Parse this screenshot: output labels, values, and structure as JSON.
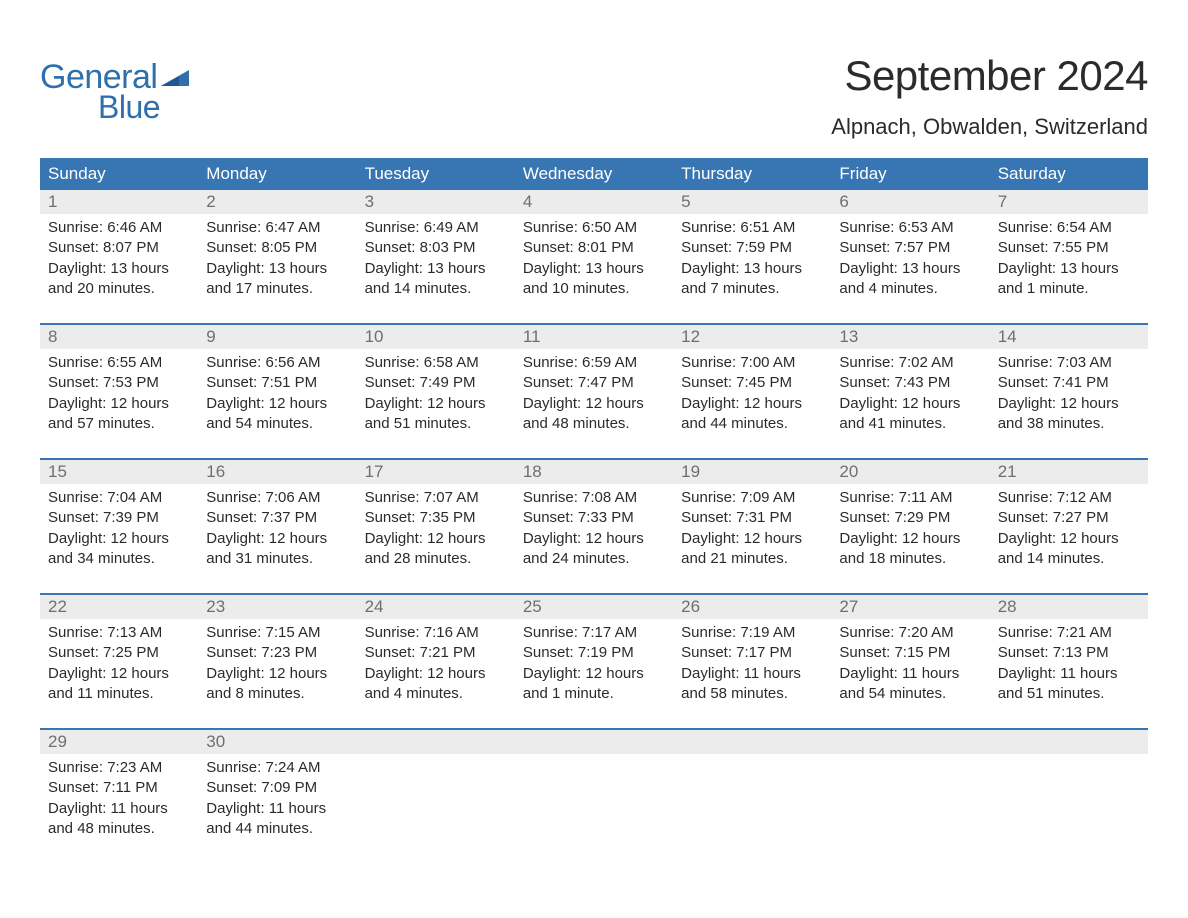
{
  "brand": {
    "word1": "General",
    "word2": "Blue",
    "flag_color": "#2f6fab"
  },
  "title": "September 2024",
  "location": "Alpnach, Obwalden, Switzerland",
  "colors": {
    "header_bg": "#3876b3",
    "header_text": "#ffffff",
    "daynum_bg": "#ececec",
    "daynum_text": "#6f6f6f",
    "body_text": "#2b2b2b",
    "brand_text": "#2f6fab",
    "page_bg": "#ffffff"
  },
  "typography": {
    "title_fontsize": 42,
    "location_fontsize": 22,
    "weekday_fontsize": 17,
    "daynum_fontsize": 17,
    "cell_fontsize": 15,
    "logo_fontsize": 34
  },
  "weekdays": [
    "Sunday",
    "Monday",
    "Tuesday",
    "Wednesday",
    "Thursday",
    "Friday",
    "Saturday"
  ],
  "weeks": [
    [
      {
        "num": "1",
        "sunrise": "Sunrise: 6:46 AM",
        "sunset": "Sunset: 8:07 PM",
        "day1": "Daylight: 13 hours",
        "day2": "and 20 minutes."
      },
      {
        "num": "2",
        "sunrise": "Sunrise: 6:47 AM",
        "sunset": "Sunset: 8:05 PM",
        "day1": "Daylight: 13 hours",
        "day2": "and 17 minutes."
      },
      {
        "num": "3",
        "sunrise": "Sunrise: 6:49 AM",
        "sunset": "Sunset: 8:03 PM",
        "day1": "Daylight: 13 hours",
        "day2": "and 14 minutes."
      },
      {
        "num": "4",
        "sunrise": "Sunrise: 6:50 AM",
        "sunset": "Sunset: 8:01 PM",
        "day1": "Daylight: 13 hours",
        "day2": "and 10 minutes."
      },
      {
        "num": "5",
        "sunrise": "Sunrise: 6:51 AM",
        "sunset": "Sunset: 7:59 PM",
        "day1": "Daylight: 13 hours",
        "day2": "and 7 minutes."
      },
      {
        "num": "6",
        "sunrise": "Sunrise: 6:53 AM",
        "sunset": "Sunset: 7:57 PM",
        "day1": "Daylight: 13 hours",
        "day2": "and 4 minutes."
      },
      {
        "num": "7",
        "sunrise": "Sunrise: 6:54 AM",
        "sunset": "Sunset: 7:55 PM",
        "day1": "Daylight: 13 hours",
        "day2": "and 1 minute."
      }
    ],
    [
      {
        "num": "8",
        "sunrise": "Sunrise: 6:55 AM",
        "sunset": "Sunset: 7:53 PM",
        "day1": "Daylight: 12 hours",
        "day2": "and 57 minutes."
      },
      {
        "num": "9",
        "sunrise": "Sunrise: 6:56 AM",
        "sunset": "Sunset: 7:51 PM",
        "day1": "Daylight: 12 hours",
        "day2": "and 54 minutes."
      },
      {
        "num": "10",
        "sunrise": "Sunrise: 6:58 AM",
        "sunset": "Sunset: 7:49 PM",
        "day1": "Daylight: 12 hours",
        "day2": "and 51 minutes."
      },
      {
        "num": "11",
        "sunrise": "Sunrise: 6:59 AM",
        "sunset": "Sunset: 7:47 PM",
        "day1": "Daylight: 12 hours",
        "day2": "and 48 minutes."
      },
      {
        "num": "12",
        "sunrise": "Sunrise: 7:00 AM",
        "sunset": "Sunset: 7:45 PM",
        "day1": "Daylight: 12 hours",
        "day2": "and 44 minutes."
      },
      {
        "num": "13",
        "sunrise": "Sunrise: 7:02 AM",
        "sunset": "Sunset: 7:43 PM",
        "day1": "Daylight: 12 hours",
        "day2": "and 41 minutes."
      },
      {
        "num": "14",
        "sunrise": "Sunrise: 7:03 AM",
        "sunset": "Sunset: 7:41 PM",
        "day1": "Daylight: 12 hours",
        "day2": "and 38 minutes."
      }
    ],
    [
      {
        "num": "15",
        "sunrise": "Sunrise: 7:04 AM",
        "sunset": "Sunset: 7:39 PM",
        "day1": "Daylight: 12 hours",
        "day2": "and 34 minutes."
      },
      {
        "num": "16",
        "sunrise": "Sunrise: 7:06 AM",
        "sunset": "Sunset: 7:37 PM",
        "day1": "Daylight: 12 hours",
        "day2": "and 31 minutes."
      },
      {
        "num": "17",
        "sunrise": "Sunrise: 7:07 AM",
        "sunset": "Sunset: 7:35 PM",
        "day1": "Daylight: 12 hours",
        "day2": "and 28 minutes."
      },
      {
        "num": "18",
        "sunrise": "Sunrise: 7:08 AM",
        "sunset": "Sunset: 7:33 PM",
        "day1": "Daylight: 12 hours",
        "day2": "and 24 minutes."
      },
      {
        "num": "19",
        "sunrise": "Sunrise: 7:09 AM",
        "sunset": "Sunset: 7:31 PM",
        "day1": "Daylight: 12 hours",
        "day2": "and 21 minutes."
      },
      {
        "num": "20",
        "sunrise": "Sunrise: 7:11 AM",
        "sunset": "Sunset: 7:29 PM",
        "day1": "Daylight: 12 hours",
        "day2": "and 18 minutes."
      },
      {
        "num": "21",
        "sunrise": "Sunrise: 7:12 AM",
        "sunset": "Sunset: 7:27 PM",
        "day1": "Daylight: 12 hours",
        "day2": "and 14 minutes."
      }
    ],
    [
      {
        "num": "22",
        "sunrise": "Sunrise: 7:13 AM",
        "sunset": "Sunset: 7:25 PM",
        "day1": "Daylight: 12 hours",
        "day2": "and 11 minutes."
      },
      {
        "num": "23",
        "sunrise": "Sunrise: 7:15 AM",
        "sunset": "Sunset: 7:23 PM",
        "day1": "Daylight: 12 hours",
        "day2": "and 8 minutes."
      },
      {
        "num": "24",
        "sunrise": "Sunrise: 7:16 AM",
        "sunset": "Sunset: 7:21 PM",
        "day1": "Daylight: 12 hours",
        "day2": "and 4 minutes."
      },
      {
        "num": "25",
        "sunrise": "Sunrise: 7:17 AM",
        "sunset": "Sunset: 7:19 PM",
        "day1": "Daylight: 12 hours",
        "day2": "and 1 minute."
      },
      {
        "num": "26",
        "sunrise": "Sunrise: 7:19 AM",
        "sunset": "Sunset: 7:17 PM",
        "day1": "Daylight: 11 hours",
        "day2": "and 58 minutes."
      },
      {
        "num": "27",
        "sunrise": "Sunrise: 7:20 AM",
        "sunset": "Sunset: 7:15 PM",
        "day1": "Daylight: 11 hours",
        "day2": "and 54 minutes."
      },
      {
        "num": "28",
        "sunrise": "Sunrise: 7:21 AM",
        "sunset": "Sunset: 7:13 PM",
        "day1": "Daylight: 11 hours",
        "day2": "and 51 minutes."
      }
    ],
    [
      {
        "num": "29",
        "sunrise": "Sunrise: 7:23 AM",
        "sunset": "Sunset: 7:11 PM",
        "day1": "Daylight: 11 hours",
        "day2": "and 48 minutes."
      },
      {
        "num": "30",
        "sunrise": "Sunrise: 7:24 AM",
        "sunset": "Sunset: 7:09 PM",
        "day1": "Daylight: 11 hours",
        "day2": "and 44 minutes."
      },
      null,
      null,
      null,
      null,
      null
    ]
  ]
}
